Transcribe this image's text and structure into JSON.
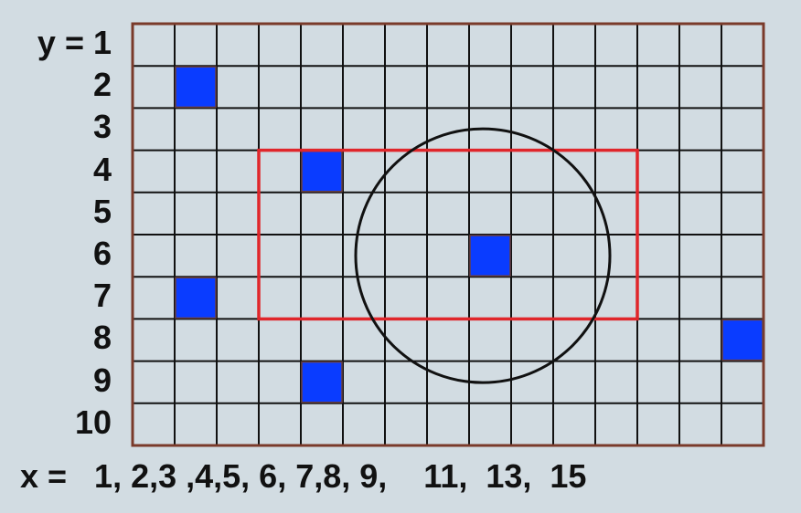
{
  "y_axis": {
    "labels": [
      "y = 1",
      "2",
      "3",
      "4",
      "5",
      "6",
      "7",
      "8",
      "9",
      "10"
    ]
  },
  "x_axis": {
    "text": "x =   1, 2,3 ,4,5, 6, 7,8, 9,    11,  13,  15"
  },
  "grid": {
    "columns": 15,
    "rows": 10,
    "border_color": "#7a3a2a",
    "line_color": "#111111",
    "cell_color": "#d2dce2"
  },
  "squares": [
    {
      "x": 2,
      "y": 2
    },
    {
      "x": 5,
      "y": 4
    },
    {
      "x": 9,
      "y": 6
    },
    {
      "x": 2,
      "y": 7
    },
    {
      "x": 15,
      "y": 8
    },
    {
      "x": 5,
      "y": 9
    }
  ],
  "square_color": "#0a3cff",
  "rectangle": {
    "x_from": 4,
    "x_to": 12,
    "y_from": 4,
    "y_to": 7,
    "color": "#e0262b"
  },
  "circle": {
    "center_x": 9,
    "center_y": 6,
    "color": "#111111"
  }
}
